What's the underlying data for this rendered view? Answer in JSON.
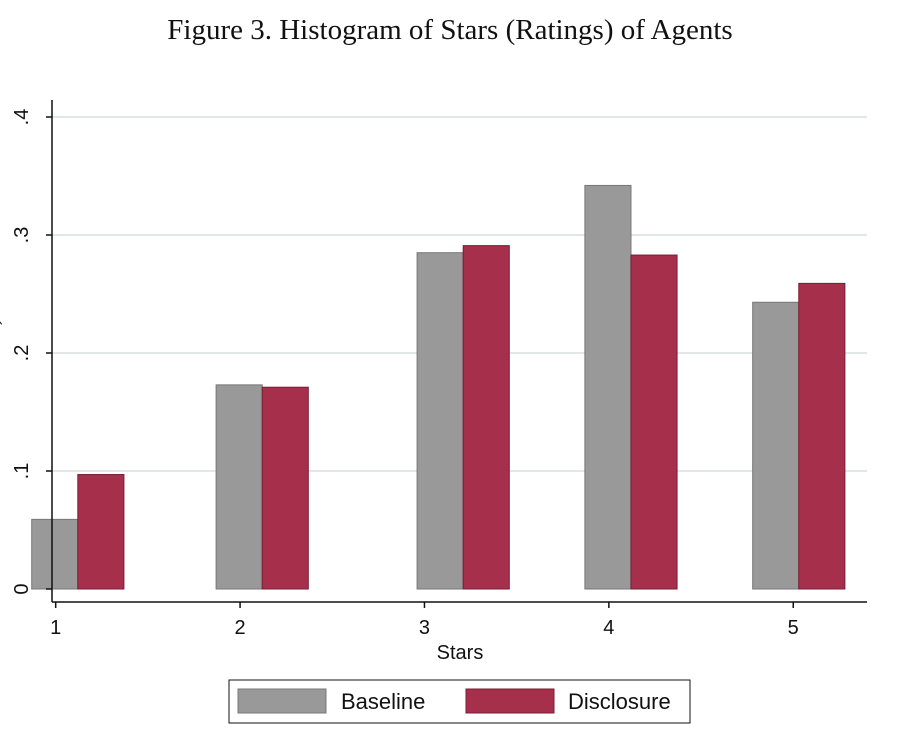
{
  "chart_data": {
    "type": "bar",
    "title": "Figure 3. Histogram of Stars (Ratings) of Agents",
    "xlabel": "Stars",
    "ylabel": "´",
    "categories": [
      1,
      2,
      3,
      4,
      5
    ],
    "x_ticks": [
      "1",
      "2",
      "3",
      "4",
      "5"
    ],
    "y_ticks": [
      {
        "value": 0,
        "label": "0"
      },
      {
        "value": 0.1,
        "label": ".1"
      },
      {
        "value": 0.2,
        "label": ".2"
      },
      {
        "value": 0.3,
        "label": ".3"
      },
      {
        "value": 0.4,
        "label": ".4"
      }
    ],
    "ylim": [
      0,
      0.4
    ],
    "xlim": [
      0.98,
      5.4
    ],
    "bar_centers": [
      1.12,
      2.12,
      3.21,
      4.12,
      5.03
    ],
    "bar_width": 0.25,
    "grid": true,
    "legend_position": "bottom",
    "series": [
      {
        "name": "Baseline",
        "color": "#999999",
        "values": [
          0.059,
          0.173,
          0.285,
          0.342,
          0.243
        ]
      },
      {
        "name": "Disclosure",
        "color": "#A6304C",
        "values": [
          0.097,
          0.171,
          0.291,
          0.283,
          0.259
        ]
      }
    ]
  }
}
